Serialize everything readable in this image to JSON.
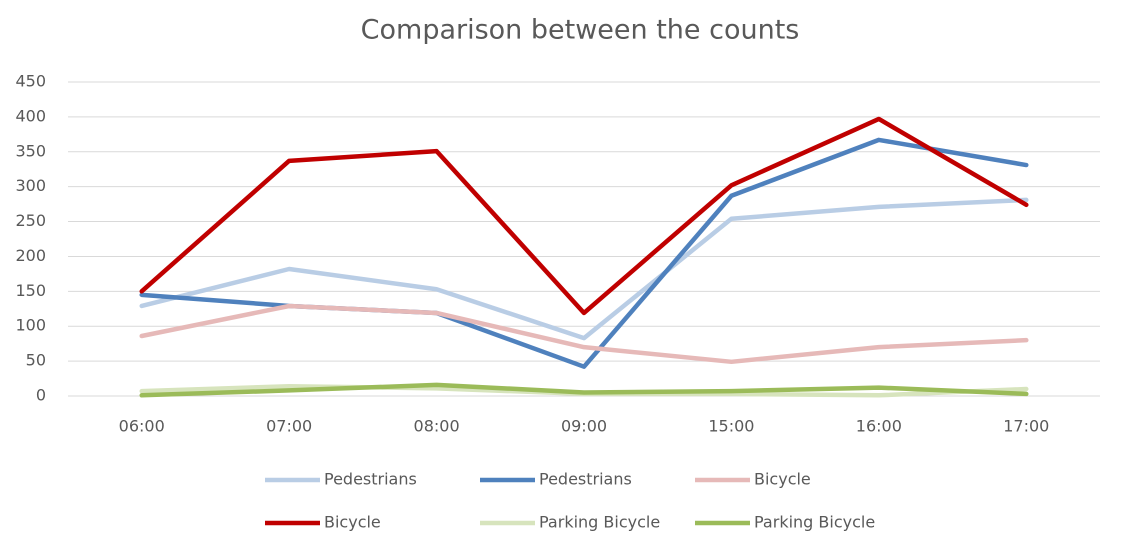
{
  "chart_data": {
    "type": "line",
    "title": "Comparison between the counts",
    "categories": [
      "06:00",
      "07:00",
      "08:00",
      "09:00",
      "15:00",
      "16:00",
      "17:00"
    ],
    "series": [
      {
        "name": "Pedestrians",
        "color": "#b9cde5",
        "values": [
          129,
          182,
          153,
          83,
          254,
          271,
          281
        ]
      },
      {
        "name": "Pedestrians",
        "color": "#4f81bd",
        "values": [
          145,
          129,
          119,
          42,
          287,
          367,
          331
        ]
      },
      {
        "name": "Bicycle",
        "color": "#e6b9b8",
        "values": [
          86,
          129,
          119,
          70,
          49,
          70,
          80
        ]
      },
      {
        "name": "Bicycle",
        "color": "#c00000",
        "values": [
          150,
          337,
          351,
          119,
          302,
          397,
          274
        ]
      },
      {
        "name": "Parking Bicycle",
        "color": "#d7e4bd",
        "values": [
          7,
          14,
          11,
          3,
          3,
          1,
          10
        ]
      },
      {
        "name": "Parking Bicycle",
        "color": "#9bbb59",
        "values": [
          1,
          8,
          16,
          5,
          7,
          12,
          3
        ]
      }
    ],
    "ylim": [
      0,
      450
    ],
    "yticks": [
      0,
      50,
      100,
      150,
      200,
      250,
      300,
      350,
      400,
      450
    ],
    "grid": true,
    "legend": "bottom"
  }
}
